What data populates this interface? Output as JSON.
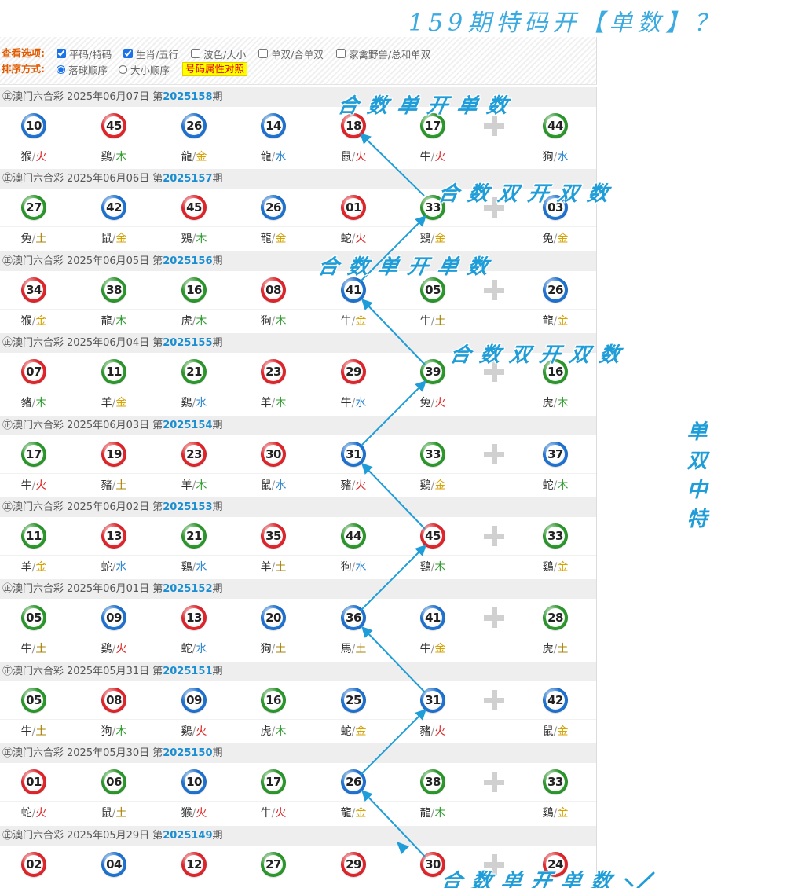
{
  "headline": "159期特码开【单数】？",
  "options": {
    "view_label": "查看选项:",
    "view_items": [
      {
        "label": "平码/特码",
        "checked": true
      },
      {
        "label": "生肖/五行",
        "checked": true
      },
      {
        "label": "波色/大小",
        "checked": false
      },
      {
        "label": "单双/合单双",
        "checked": false
      },
      {
        "label": "家禽野兽/总和单双",
        "checked": false
      }
    ],
    "sort_label": "排序方式:",
    "sort_items": [
      {
        "label": "落球顺序",
        "checked": true
      },
      {
        "label": "大小顺序",
        "checked": false
      }
    ],
    "attr_button": "号码属性对照"
  },
  "draw_header": {
    "prefix": "㊣澳门六合彩",
    "issue_prefix": "第",
    "issue_suffix": "期"
  },
  "zodiac_separator": "/",
  "draws": [
    {
      "date": "2025年06月07日",
      "issue": "2025158",
      "numbers": [
        {
          "no": "10",
          "wave": "blue",
          "zodiac": "猴",
          "element": "火"
        },
        {
          "no": "45",
          "wave": "red",
          "zodiac": "鷄",
          "element": "木"
        },
        {
          "no": "26",
          "wave": "blue",
          "zodiac": "龍",
          "element": "金"
        },
        {
          "no": "14",
          "wave": "blue",
          "zodiac": "龍",
          "element": "水"
        },
        {
          "no": "18",
          "wave": "red",
          "zodiac": "鼠",
          "element": "火"
        },
        {
          "no": "17",
          "wave": "green",
          "zodiac": "牛",
          "element": "火"
        }
      ],
      "special": {
        "no": "44",
        "wave": "green",
        "zodiac": "狗",
        "element": "水"
      }
    },
    {
      "date": "2025年06月06日",
      "issue": "2025157",
      "numbers": [
        {
          "no": "27",
          "wave": "green",
          "zodiac": "兔",
          "element": "土"
        },
        {
          "no": "42",
          "wave": "blue",
          "zodiac": "鼠",
          "element": "金"
        },
        {
          "no": "45",
          "wave": "red",
          "zodiac": "鷄",
          "element": "木"
        },
        {
          "no": "26",
          "wave": "blue",
          "zodiac": "龍",
          "element": "金"
        },
        {
          "no": "01",
          "wave": "red",
          "zodiac": "蛇",
          "element": "火"
        },
        {
          "no": "33",
          "wave": "green",
          "zodiac": "鷄",
          "element": "金"
        }
      ],
      "special": {
        "no": "03",
        "wave": "blue",
        "zodiac": "兔",
        "element": "金"
      }
    },
    {
      "date": "2025年06月05日",
      "issue": "2025156",
      "numbers": [
        {
          "no": "34",
          "wave": "red",
          "zodiac": "猴",
          "element": "金"
        },
        {
          "no": "38",
          "wave": "green",
          "zodiac": "龍",
          "element": "木"
        },
        {
          "no": "16",
          "wave": "green",
          "zodiac": "虎",
          "element": "木"
        },
        {
          "no": "08",
          "wave": "red",
          "zodiac": "狗",
          "element": "木"
        },
        {
          "no": "41",
          "wave": "blue",
          "zodiac": "牛",
          "element": "金"
        },
        {
          "no": "05",
          "wave": "green",
          "zodiac": "牛",
          "element": "土"
        }
      ],
      "special": {
        "no": "26",
        "wave": "blue",
        "zodiac": "龍",
        "element": "金"
      }
    },
    {
      "date": "2025年06月04日",
      "issue": "2025155",
      "numbers": [
        {
          "no": "07",
          "wave": "red",
          "zodiac": "豬",
          "element": "木"
        },
        {
          "no": "11",
          "wave": "green",
          "zodiac": "羊",
          "element": "金"
        },
        {
          "no": "21",
          "wave": "green",
          "zodiac": "鷄",
          "element": "水"
        },
        {
          "no": "23",
          "wave": "red",
          "zodiac": "羊",
          "element": "木"
        },
        {
          "no": "29",
          "wave": "red",
          "zodiac": "牛",
          "element": "水"
        },
        {
          "no": "39",
          "wave": "green",
          "zodiac": "兔",
          "element": "火"
        }
      ],
      "special": {
        "no": "16",
        "wave": "green",
        "zodiac": "虎",
        "element": "木"
      }
    },
    {
      "date": "2025年06月03日",
      "issue": "2025154",
      "numbers": [
        {
          "no": "17",
          "wave": "green",
          "zodiac": "牛",
          "element": "火"
        },
        {
          "no": "19",
          "wave": "red",
          "zodiac": "豬",
          "element": "土"
        },
        {
          "no": "23",
          "wave": "red",
          "zodiac": "羊",
          "element": "木"
        },
        {
          "no": "30",
          "wave": "red",
          "zodiac": "鼠",
          "element": "水"
        },
        {
          "no": "31",
          "wave": "blue",
          "zodiac": "豬",
          "element": "火"
        },
        {
          "no": "33",
          "wave": "green",
          "zodiac": "鷄",
          "element": "金"
        }
      ],
      "special": {
        "no": "37",
        "wave": "blue",
        "zodiac": "蛇",
        "element": "木"
      }
    },
    {
      "date": "2025年06月02日",
      "issue": "2025153",
      "numbers": [
        {
          "no": "11",
          "wave": "green",
          "zodiac": "羊",
          "element": "金"
        },
        {
          "no": "13",
          "wave": "red",
          "zodiac": "蛇",
          "element": "水"
        },
        {
          "no": "21",
          "wave": "green",
          "zodiac": "鷄",
          "element": "水"
        },
        {
          "no": "35",
          "wave": "red",
          "zodiac": "羊",
          "element": "土"
        },
        {
          "no": "44",
          "wave": "green",
          "zodiac": "狗",
          "element": "水"
        },
        {
          "no": "45",
          "wave": "red",
          "zodiac": "鷄",
          "element": "木"
        }
      ],
      "special": {
        "no": "33",
        "wave": "green",
        "zodiac": "鷄",
        "element": "金"
      }
    },
    {
      "date": "2025年06月01日",
      "issue": "2025152",
      "numbers": [
        {
          "no": "05",
          "wave": "green",
          "zodiac": "牛",
          "element": "土"
        },
        {
          "no": "09",
          "wave": "blue",
          "zodiac": "鷄",
          "element": "火"
        },
        {
          "no": "13",
          "wave": "red",
          "zodiac": "蛇",
          "element": "水"
        },
        {
          "no": "20",
          "wave": "blue",
          "zodiac": "狗",
          "element": "土"
        },
        {
          "no": "36",
          "wave": "blue",
          "zodiac": "馬",
          "element": "土"
        },
        {
          "no": "41",
          "wave": "blue",
          "zodiac": "牛",
          "element": "金"
        }
      ],
      "special": {
        "no": "28",
        "wave": "green",
        "zodiac": "虎",
        "element": "土"
      }
    },
    {
      "date": "2025年05月31日",
      "issue": "2025151",
      "numbers": [
        {
          "no": "05",
          "wave": "green",
          "zodiac": "牛",
          "element": "土"
        },
        {
          "no": "08",
          "wave": "red",
          "zodiac": "狗",
          "element": "木"
        },
        {
          "no": "09",
          "wave": "blue",
          "zodiac": "鷄",
          "element": "火"
        },
        {
          "no": "16",
          "wave": "green",
          "zodiac": "虎",
          "element": "木"
        },
        {
          "no": "25",
          "wave": "blue",
          "zodiac": "蛇",
          "element": "金"
        },
        {
          "no": "31",
          "wave": "blue",
          "zodiac": "豬",
          "element": "火"
        }
      ],
      "special": {
        "no": "42",
        "wave": "blue",
        "zodiac": "鼠",
        "element": "金"
      }
    },
    {
      "date": "2025年05月30日",
      "issue": "2025150",
      "numbers": [
        {
          "no": "01",
          "wave": "red",
          "zodiac": "蛇",
          "element": "火"
        },
        {
          "no": "06",
          "wave": "green",
          "zodiac": "鼠",
          "element": "土"
        },
        {
          "no": "10",
          "wave": "blue",
          "zodiac": "猴",
          "element": "火"
        },
        {
          "no": "17",
          "wave": "green",
          "zodiac": "牛",
          "element": "火"
        },
        {
          "no": "26",
          "wave": "blue",
          "zodiac": "龍",
          "element": "金"
        },
        {
          "no": "38",
          "wave": "green",
          "zodiac": "龍",
          "element": "木"
        }
      ],
      "special": {
        "no": "33",
        "wave": "green",
        "zodiac": "鷄",
        "element": "金"
      }
    },
    {
      "date": "2025年05月29日",
      "issue": "2025149",
      "numbers": [
        {
          "no": "02",
          "wave": "red"
        },
        {
          "no": "04",
          "wave": "blue"
        },
        {
          "no": "12",
          "wave": "red"
        },
        {
          "no": "27",
          "wave": "green"
        },
        {
          "no": "29",
          "wave": "red"
        },
        {
          "no": "30",
          "wave": "red"
        }
      ],
      "special": {
        "no": "24",
        "wave": "red"
      }
    }
  ],
  "annotations": {
    "notes": [
      "合数单开单数",
      "合数双开双数",
      "合数单开单数",
      "合数双开双数"
    ],
    "side_note": "单双中特",
    "bottom_note": "合数单开单数"
  },
  "colors": {
    "waves": {
      "red": "#e3262c",
      "blue": "#1f74d4",
      "green": "#2c9a2c"
    },
    "elements": {
      "火": "#e02424",
      "木": "#2e9b2e",
      "金": "#d6a200",
      "水": "#2f88d2",
      "土": "#a98100"
    },
    "annotation": "#1e9dd8",
    "annotation_title": "#3aaae0",
    "option_label": "#e25b00",
    "issue_number": "#1b8ed1",
    "attr_button_bg": "#ffff00",
    "attr_button_text": "#e00000"
  }
}
